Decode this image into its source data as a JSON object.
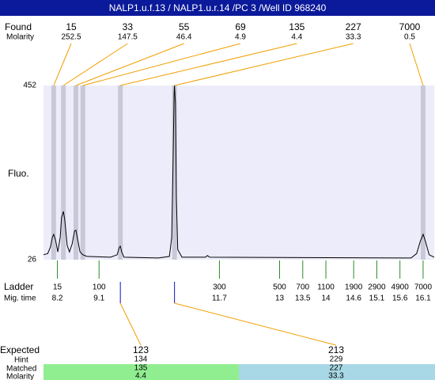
{
  "header": {
    "title": "NALP1.u.f.13 / NALP1.u.r.14 /PC 3 /Well ID 968240"
  },
  "labels": {
    "found": "Found",
    "molarity": "Molarity",
    "fluo": "Fluo.",
    "ladder": "Ladder",
    "mig_time": "Mig. time",
    "expected": "Expected",
    "hint": "Hint",
    "matched": "Matched",
    "molarity_bottom": "Molarity"
  },
  "chart_data": {
    "type": "line",
    "xlim": [
      7.9,
      16.34
    ],
    "ylim": [
      26,
      452
    ],
    "yticks": [
      26,
      452
    ],
    "color": "#000000",
    "x": [
      7.9,
      7.99,
      8.05,
      8.09,
      8.12,
      8.16,
      8.21,
      8.26,
      8.29,
      8.33,
      8.36,
      8.41,
      8.46,
      8.52,
      8.57,
      8.6,
      8.63,
      8.69,
      8.75,
      8.84,
      9.35,
      9.49,
      9.54,
      9.56,
      9.59,
      9.64,
      10.38,
      10.62,
      10.67,
      10.7,
      10.72,
      10.73,
      10.75,
      10.77,
      10.8,
      10.89,
      11.4,
      11.44,
      11.49,
      15.84,
      15.96,
      16.04,
      16.1,
      16.15,
      16.23,
      16.34
    ],
    "values": [
      38,
      41,
      57,
      80,
      88,
      74,
      45,
      80,
      129,
      144,
      123,
      61,
      45,
      65,
      96,
      98,
      80,
      45,
      38,
      34,
      32,
      38,
      57,
      59,
      45,
      32,
      30,
      34,
      80,
      274,
      429,
      452,
      409,
      177,
      51,
      32,
      32,
      36,
      32,
      30,
      41,
      71,
      88,
      71,
      38,
      32
    ],
    "found": {
      "sizes": [
        15,
        33,
        55,
        69,
        135,
        227,
        7000
      ],
      "molarity": [
        252.5,
        147.5,
        46.4,
        4.9,
        4.4,
        33.3,
        0.5
      ],
      "mig_time": [
        8.12,
        8.33,
        8.6,
        8.75,
        9.56,
        10.73,
        16.1
      ]
    },
    "ladder": {
      "sizes": [
        15,
        100,
        300,
        500,
        700,
        1100,
        1900,
        2900,
        4900,
        7000
      ],
      "mig_time": [
        8.2,
        9.1,
        11.7,
        13,
        13.5,
        14,
        14.6,
        15.1,
        15.6,
        16.1
      ]
    },
    "expected": [
      {
        "size": 123,
        "hint": 134,
        "matched": 135,
        "molarity": 4.4,
        "mig_time": 9.56
      },
      {
        "size": 213,
        "hint": 229,
        "matched": 227,
        "molarity": 33.3,
        "mig_time": 10.73
      }
    ]
  }
}
